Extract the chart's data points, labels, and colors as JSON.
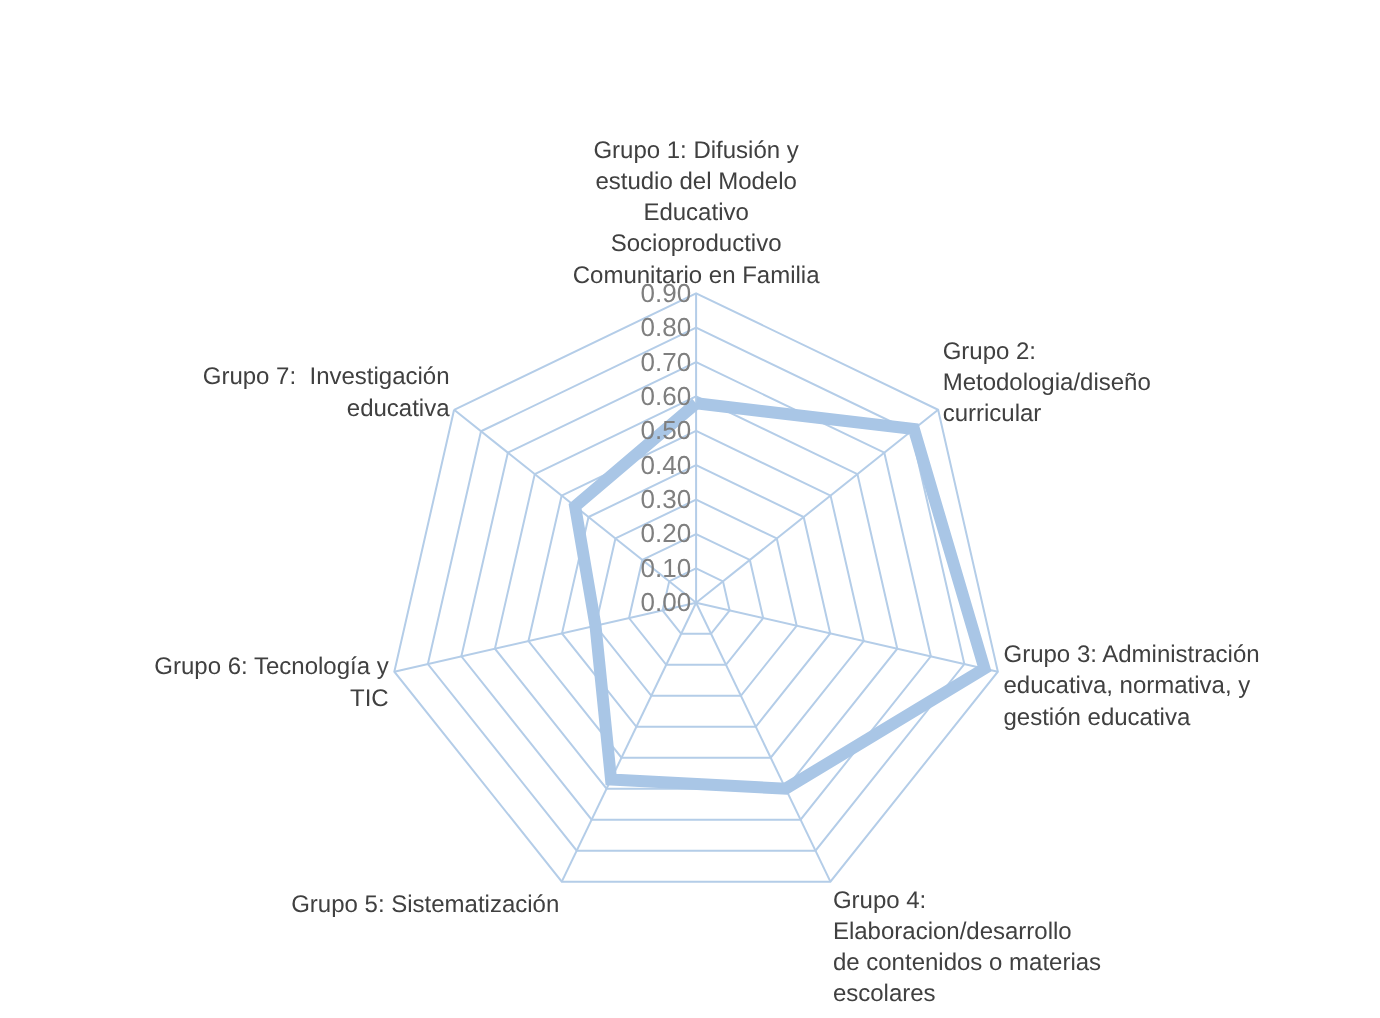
{
  "chart_data": {
    "type": "radar",
    "categories": [
      "Grupo 1: Difusión y estudio del Modelo Educativo Socioproductivo Comunitario en Familia",
      "Grupo 2: Metodologia/diseño curricular",
      "Grupo 3: Administración educativa, normativa, y gestión educativa",
      "Grupo 4: Elaboracion/desarrollo de contenidos o materias escolares",
      "Grupo 5: Sistematización",
      "Grupo 6: Tecnología y TIC",
      "Grupo 7:  Investigación educativa"
    ],
    "series": [
      {
        "color": "#a9c6e6",
        "values": [
          0.58,
          0.81,
          0.86,
          0.6,
          0.57,
          0.3,
          0.45
        ]
      }
    ],
    "ylim": [
      0,
      0.9
    ],
    "yticks": [
      {
        "value": 0,
        "label": "0.00"
      },
      {
        "value": 0.1,
        "label": "0.10"
      },
      {
        "value": 0.2,
        "label": "0.20"
      },
      {
        "value": 0.3,
        "label": "0.30"
      },
      {
        "value": 0.4,
        "label": "0.40"
      },
      {
        "value": 0.5,
        "label": "0.50"
      },
      {
        "value": 0.6,
        "label": "0.60"
      },
      {
        "value": 0.7,
        "label": "0.70"
      },
      {
        "value": 0.8,
        "label": "0.80"
      },
      {
        "value": 0.9,
        "label": "0.90"
      }
    ],
    "grid": true,
    "marker": "none",
    "line_style": "solid"
  }
}
